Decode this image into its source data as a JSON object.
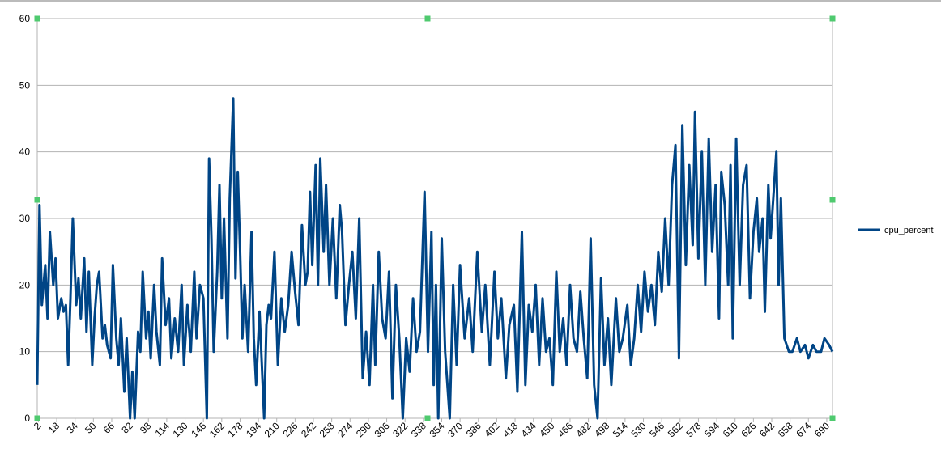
{
  "chart_data": {
    "type": "line",
    "x": [
      1,
      3,
      5,
      8,
      10,
      12,
      15,
      17,
      19,
      22,
      24,
      26,
      28,
      30,
      32,
      35,
      37,
      39,
      42,
      44,
      46,
      49,
      51,
      53,
      55,
      58,
      60,
      62,
      65,
      67,
      70,
      72,
      74,
      77,
      79,
      82,
      84,
      86,
      89,
      91,
      93,
      96,
      98,
      100,
      103,
      105,
      108,
      110,
      113,
      116,
      118,
      121,
      124,
      127,
      129,
      132,
      135,
      138,
      140,
      143,
      146,
      149,
      151,
      153,
      155,
      158,
      160,
      162,
      164,
      167,
      169,
      172,
      174,
      176,
      178,
      180,
      182,
      185,
      188,
      190,
      192,
      195,
      199,
      201,
      203,
      205,
      208,
      211,
      214,
      217,
      220,
      223,
      226,
      229,
      232,
      235,
      237,
      239,
      241,
      244,
      246,
      248,
      251,
      253,
      256,
      259,
      262,
      265,
      267,
      270,
      273,
      276,
      279,
      282,
      285,
      288,
      291,
      294,
      296,
      299,
      302,
      305,
      308,
      311,
      314,
      317,
      320,
      323,
      326,
      329,
      332,
      335,
      339,
      342,
      345,
      347,
      349,
      351,
      354,
      357,
      361,
      364,
      367,
      370,
      374,
      378,
      381,
      385,
      389,
      392,
      396,
      400,
      403,
      406,
      410,
      413,
      417,
      420,
      424,
      427,
      430,
      433,
      436,
      439,
      442,
      445,
      448,
      451,
      454,
      457,
      460,
      463,
      466,
      469,
      472,
      475,
      478,
      481,
      484,
      487,
      490,
      493,
      496,
      499,
      502,
      506,
      509,
      512,
      516,
      519,
      522,
      525,
      528,
      531,
      534,
      537,
      540,
      543,
      546,
      549,
      552,
      555,
      558,
      561,
      564,
      567,
      570,
      573,
      575,
      578,
      581,
      584,
      587,
      590,
      593,
      596,
      598,
      601,
      604,
      606,
      608,
      611,
      614,
      617,
      620,
      623,
      626,
      629,
      631,
      634,
      636,
      639,
      641,
      646,
      648,
      650,
      653,
      657,
      660,
      664,
      667,
      671,
      674,
      678,
      681,
      685,
      688,
      692,
      695
    ],
    "series": [
      {
        "name": "cpu_percent",
        "color": "#004586",
        "values": [
          5,
          32,
          17,
          23,
          15,
          28,
          20,
          24,
          15,
          18,
          16,
          17,
          8,
          18,
          30,
          17,
          21,
          15,
          24,
          13,
          22,
          8,
          15,
          20,
          22,
          12,
          14,
          11,
          9,
          23,
          12,
          8,
          15,
          4,
          12,
          0,
          7,
          0,
          13,
          10,
          22,
          12,
          16,
          9,
          20,
          13,
          8,
          24,
          14,
          18,
          9,
          15,
          10,
          20,
          8,
          17,
          10,
          22,
          12,
          20,
          18,
          0,
          39,
          27,
          10,
          22,
          35,
          18,
          30,
          12,
          33,
          48,
          21,
          37,
          25,
          12,
          20,
          10,
          28,
          12,
          5,
          16,
          0,
          14,
          17,
          15,
          25,
          8,
          18,
          13,
          17,
          25,
          19,
          14,
          29,
          20,
          22,
          34,
          23,
          38,
          20,
          39,
          25,
          35,
          20,
          30,
          18,
          32,
          28,
          14,
          20,
          25,
          15,
          30,
          6,
          13,
          5,
          20,
          8,
          25,
          15,
          12,
          22,
          3,
          20,
          12,
          0,
          12,
          7,
          18,
          10,
          13,
          34,
          10,
          28,
          5,
          20,
          0,
          27,
          10,
          0,
          20,
          8,
          23,
          12,
          18,
          10,
          25,
          13,
          20,
          8,
          22,
          12,
          18,
          6,
          14,
          17,
          4,
          28,
          5,
          17,
          13,
          20,
          8,
          18,
          10,
          12,
          5,
          22,
          10,
          15,
          8,
          20,
          12,
          10,
          19,
          12,
          6,
          27,
          5,
          0,
          21,
          8,
          15,
          5,
          18,
          10,
          12,
          17,
          8,
          12,
          20,
          13,
          22,
          16,
          20,
          14,
          25,
          19,
          30,
          20,
          35,
          41,
          9,
          44,
          23,
          38,
          26,
          46,
          24,
          40,
          20,
          42,
          25,
          35,
          15,
          37,
          32,
          20,
          38,
          12,
          42,
          20,
          35,
          38,
          18,
          28,
          33,
          25,
          30,
          16,
          35,
          27,
          40,
          20,
          33,
          12,
          10,
          10,
          12,
          10,
          11,
          9,
          11,
          10,
          10,
          12,
          11,
          10
        ]
      }
    ],
    "xlim": [
      1,
      695
    ],
    "xticks": [
      2,
      18,
      34,
      50,
      66,
      82,
      98,
      114,
      130,
      146,
      162,
      178,
      194,
      210,
      226,
      242,
      258,
      274,
      290,
      306,
      322,
      338,
      354,
      370,
      386,
      402,
      418,
      434,
      450,
      466,
      482,
      498,
      514,
      530,
      546,
      562,
      578,
      594,
      610,
      626,
      642,
      658,
      674,
      690
    ],
    "ylim": [
      0,
      60
    ],
    "yticks": [
      0,
      10,
      20,
      30,
      40,
      50,
      60
    ],
    "grid": true,
    "legend": "right"
  }
}
